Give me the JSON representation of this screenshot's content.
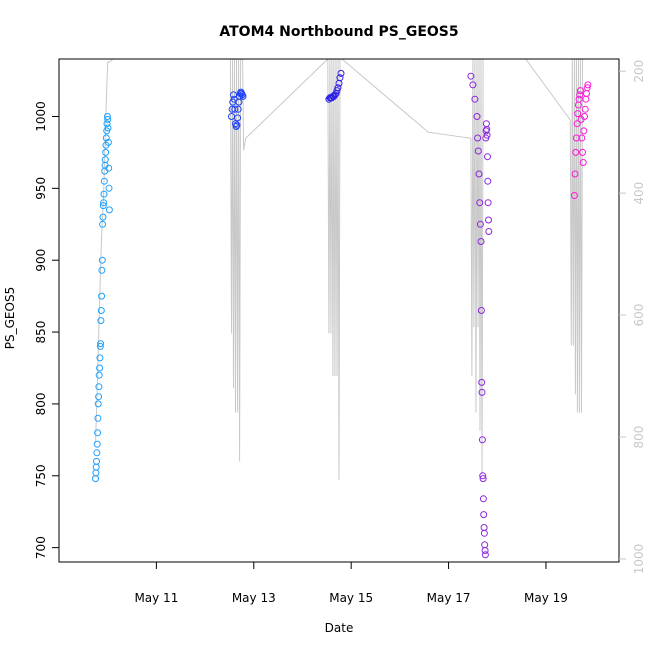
{
  "chart_data": {
    "type": "scatter",
    "title": "ATOM4 Northbound PS_GEOS5",
    "xlabel": "Date",
    "ylabel": "PS_GEOS5",
    "x_axis": {
      "type": "date",
      "range": [
        "2018-05-09T00:00",
        "2018-05-20T12:00"
      ],
      "ticks": [
        {
          "value": "2018-05-11",
          "label": "May 11"
        },
        {
          "value": "2018-05-13",
          "label": "May 13"
        },
        {
          "value": "2018-05-15",
          "label": "May 15"
        },
        {
          "value": "2018-05-17",
          "label": "May 17"
        },
        {
          "value": "2018-05-19",
          "label": "May 19"
        }
      ]
    },
    "y_axis": {
      "range": [
        690,
        1040
      ],
      "ticks": [
        700,
        750,
        800,
        850,
        900,
        950,
        1000
      ]
    },
    "y2_axis": {
      "range": [
        1005,
        180
      ],
      "ticks": [
        200,
        400,
        600,
        800,
        1000
      ],
      "color": "#c8c8c8"
    },
    "grid": false,
    "legend": "none",
    "series": [
      {
        "color": "#1ea0ff",
        "points": [
          [
            "2018-05-09T18:00",
            748
          ],
          [
            "2018-05-09T18:10",
            752
          ],
          [
            "2018-05-09T18:20",
            756
          ],
          [
            "2018-05-09T18:30",
            760
          ],
          [
            "2018-05-09T18:40",
            766
          ],
          [
            "2018-05-09T18:50",
            772
          ],
          [
            "2018-05-09T19:00",
            780
          ],
          [
            "2018-05-09T19:10",
            790
          ],
          [
            "2018-05-09T19:20",
            800
          ],
          [
            "2018-05-09T19:30",
            805
          ],
          [
            "2018-05-09T19:40",
            812
          ],
          [
            "2018-05-09T19:50",
            820
          ],
          [
            "2018-05-09T20:00",
            825
          ],
          [
            "2018-05-09T20:10",
            832
          ],
          [
            "2018-05-09T20:20",
            840
          ],
          [
            "2018-05-09T20:30",
            842
          ],
          [
            "2018-05-09T20:40",
            858
          ],
          [
            "2018-05-09T20:50",
            865
          ],
          [
            "2018-05-09T21:00",
            875
          ],
          [
            "2018-05-09T21:10",
            893
          ],
          [
            "2018-05-09T21:20",
            900
          ],
          [
            "2018-05-09T21:30",
            925
          ],
          [
            "2018-05-09T21:40",
            930
          ],
          [
            "2018-05-09T21:50",
            938
          ],
          [
            "2018-05-09T22:00",
            940
          ],
          [
            "2018-05-09T22:10",
            946
          ],
          [
            "2018-05-09T22:20",
            955
          ],
          [
            "2018-05-09T22:30",
            962
          ],
          [
            "2018-05-09T22:40",
            966
          ],
          [
            "2018-05-09T22:50",
            970
          ],
          [
            "2018-05-09T23:00",
            975
          ],
          [
            "2018-05-09T23:10",
            980
          ],
          [
            "2018-05-09T23:20",
            985
          ],
          [
            "2018-05-09T23:30",
            990
          ],
          [
            "2018-05-09T23:40",
            995
          ],
          [
            "2018-05-09T23:50",
            1000
          ],
          [
            "2018-05-10T00:00",
            998
          ],
          [
            "2018-05-10T00:10",
            992
          ],
          [
            "2018-05-10T00:20",
            982
          ],
          [
            "2018-05-10T00:30",
            964
          ],
          [
            "2018-05-10T00:40",
            950
          ],
          [
            "2018-05-10T00:50",
            935
          ]
        ]
      },
      {
        "color": "#1e40ff",
        "points": [
          [
            "2018-05-12T13:00",
            1000
          ],
          [
            "2018-05-12T13:20",
            1005
          ],
          [
            "2018-05-12T13:40",
            1010
          ],
          [
            "2018-05-12T14:00",
            1015
          ],
          [
            "2018-05-12T14:20",
            1012
          ],
          [
            "2018-05-12T14:40",
            1005
          ],
          [
            "2018-05-12T15:00",
            995
          ],
          [
            "2018-05-12T15:20",
            993
          ],
          [
            "2018-05-12T15:40",
            994
          ],
          [
            "2018-05-12T16:00",
            999
          ],
          [
            "2018-05-12T16:20",
            1005
          ],
          [
            "2018-05-12T16:40",
            1010
          ],
          [
            "2018-05-12T17:00",
            1014
          ],
          [
            "2018-05-12T17:20",
            1016
          ],
          [
            "2018-05-12T17:40",
            1017
          ],
          [
            "2018-05-12T18:00",
            1016
          ],
          [
            "2018-05-12T18:20",
            1015
          ],
          [
            "2018-05-12T18:40",
            1014
          ]
        ]
      },
      {
        "color": "#2d1ee6",
        "points": [
          [
            "2018-05-14T13:00",
            1012
          ],
          [
            "2018-05-14T13:30",
            1013
          ],
          [
            "2018-05-14T14:00",
            1013
          ],
          [
            "2018-05-14T14:30",
            1013
          ],
          [
            "2018-05-14T15:00",
            1014
          ],
          [
            "2018-05-14T15:30",
            1014
          ],
          [
            "2018-05-14T16:00",
            1015
          ],
          [
            "2018-05-14T16:30",
            1016
          ],
          [
            "2018-05-14T17:00",
            1018
          ],
          [
            "2018-05-14T17:30",
            1020
          ],
          [
            "2018-05-14T18:00",
            1023
          ],
          [
            "2018-05-14T18:30",
            1027
          ],
          [
            "2018-05-14T19:00",
            1030
          ]
        ]
      },
      {
        "color": "#8c28dc",
        "points": [
          [
            "2018-05-17T11:00",
            1028
          ],
          [
            "2018-05-17T12:00",
            1022
          ],
          [
            "2018-05-17T13:00",
            1012
          ],
          [
            "2018-05-17T14:00",
            1000
          ],
          [
            "2018-05-17T14:20",
            985
          ],
          [
            "2018-05-17T14:40",
            976
          ],
          [
            "2018-05-17T15:00",
            960
          ],
          [
            "2018-05-17T15:20",
            940
          ],
          [
            "2018-05-17T15:40",
            925
          ],
          [
            "2018-05-17T16:00",
            913
          ],
          [
            "2018-05-17T16:10",
            865
          ],
          [
            "2018-05-17T16:20",
            815
          ],
          [
            "2018-05-17T16:30",
            808
          ],
          [
            "2018-05-17T16:40",
            775
          ],
          [
            "2018-05-17T16:50",
            750
          ],
          [
            "2018-05-17T17:00",
            748
          ],
          [
            "2018-05-17T17:10",
            734
          ],
          [
            "2018-05-17T17:20",
            723
          ],
          [
            "2018-05-17T17:30",
            714
          ],
          [
            "2018-05-17T17:40",
            710
          ],
          [
            "2018-05-17T17:50",
            702
          ],
          [
            "2018-05-17T18:00",
            698
          ],
          [
            "2018-05-17T18:10",
            695
          ],
          [
            "2018-05-17T18:20",
            985
          ],
          [
            "2018-05-17T18:30",
            990
          ],
          [
            "2018-05-17T18:40",
            995
          ],
          [
            "2018-05-17T18:50",
            991
          ],
          [
            "2018-05-17T19:00",
            987
          ],
          [
            "2018-05-17T19:10",
            972
          ],
          [
            "2018-05-17T19:20",
            955
          ],
          [
            "2018-05-17T19:30",
            940
          ],
          [
            "2018-05-17T19:40",
            928
          ],
          [
            "2018-05-17T19:50",
            920
          ]
        ]
      },
      {
        "color": "#ff19dc",
        "points": [
          [
            "2018-05-19T14:00",
            945
          ],
          [
            "2018-05-19T14:20",
            960
          ],
          [
            "2018-05-19T14:40",
            975
          ],
          [
            "2018-05-19T15:00",
            985
          ],
          [
            "2018-05-19T15:20",
            995
          ],
          [
            "2018-05-19T15:40",
            1002
          ],
          [
            "2018-05-19T16:00",
            1008
          ],
          [
            "2018-05-19T16:20",
            1012
          ],
          [
            "2018-05-19T16:40",
            1015
          ],
          [
            "2018-05-19T17:00",
            1018
          ],
          [
            "2018-05-19T17:20",
            998
          ],
          [
            "2018-05-19T17:40",
            985
          ],
          [
            "2018-05-19T18:00",
            975
          ],
          [
            "2018-05-19T18:20",
            968
          ],
          [
            "2018-05-19T18:40",
            990
          ],
          [
            "2018-05-19T19:00",
            1000
          ],
          [
            "2018-05-19T19:20",
            1005
          ],
          [
            "2018-05-19T19:40",
            1012
          ],
          [
            "2018-05-19T20:00",
            1016
          ],
          [
            "2018-05-19T20:20",
            1020
          ],
          [
            "2018-05-19T20:40",
            1022
          ]
        ]
      }
    ],
    "vertical_profile_line": {
      "color": "#c8c8c8",
      "axis": "y2",
      "points": [
        [
          "2018-05-09T18:00",
          810
        ],
        [
          "2018-05-09T18:30",
          760
        ],
        [
          "2018-05-09T19:00",
          700
        ],
        [
          "2018-05-09T19:30",
          640
        ],
        [
          "2018-05-09T20:00",
          580
        ],
        [
          "2018-05-09T20:30",
          520
        ],
        [
          "2018-05-09T21:00",
          470
        ],
        [
          "2018-05-09T21:30",
          440
        ],
        [
          "2018-05-09T22:00",
          400
        ],
        [
          "2018-05-09T22:30",
          340
        ],
        [
          "2018-05-09T23:00",
          280
        ],
        [
          "2018-05-09T23:30",
          230
        ],
        [
          "2018-05-10T00:00",
          185
        ],
        [
          "2018-05-10T00:30",
          185
        ],
        [
          "2018-05-10T01:00",
          185
        ],
        [
          "2018-05-10T04:00",
          175
        ],
        [
          "2018-05-12T12:30",
          180
        ],
        [
          "2018-05-12T13:00",
          630
        ],
        [
          "2018-05-12T13:30",
          180
        ],
        [
          "2018-05-12T14:00",
          720
        ],
        [
          "2018-05-12T14:30",
          180
        ],
        [
          "2018-05-12T15:00",
          760
        ],
        [
          "2018-05-12T15:30",
          180
        ],
        [
          "2018-05-12T16:00",
          760
        ],
        [
          "2018-05-12T16:30",
          180
        ],
        [
          "2018-05-12T17:00",
          840
        ],
        [
          "2018-05-12T17:30",
          180
        ],
        [
          "2018-05-12T18:30",
          180
        ],
        [
          "2018-05-12T19:00",
          330
        ],
        [
          "2018-05-12T20:00",
          310
        ],
        [
          "2018-05-14T12:30",
          180
        ],
        [
          "2018-05-14T13:00",
          630
        ],
        [
          "2018-05-14T13:30",
          180
        ],
        [
          "2018-05-14T14:00",
          630
        ],
        [
          "2018-05-14T14:30",
          180
        ],
        [
          "2018-05-14T15:00",
          700
        ],
        [
          "2018-05-14T15:30",
          180
        ],
        [
          "2018-05-14T16:00",
          700
        ],
        [
          "2018-05-14T16:30",
          180
        ],
        [
          "2018-05-14T17:00",
          700
        ],
        [
          "2018-05-14T17:30",
          180
        ],
        [
          "2018-05-14T18:00",
          870
        ],
        [
          "2018-05-14T18:30",
          180
        ],
        [
          "2018-05-14T19:30",
          180
        ],
        [
          "2018-05-16T14:00",
          300
        ],
        [
          "2018-05-17T11:00",
          310
        ],
        [
          "2018-05-17T11:30",
          700
        ],
        [
          "2018-05-17T12:00",
          180
        ],
        [
          "2018-05-17T12:30",
          620
        ],
        [
          "2018-05-17T13:00",
          180
        ],
        [
          "2018-05-17T13:30",
          760
        ],
        [
          "2018-05-17T14:00",
          180
        ],
        [
          "2018-05-17T14:30",
          620
        ],
        [
          "2018-05-17T15:00",
          180
        ],
        [
          "2018-05-17T15:30",
          790
        ],
        [
          "2018-05-17T16:00",
          180
        ],
        [
          "2018-05-17T16:30",
          860
        ],
        [
          "2018-05-17T17:00",
          180
        ],
        [
          "2018-05-17T18:00",
          180
        ],
        [
          "2018-05-18T14:00",
          180
        ],
        [
          "2018-05-19T12:00",
          280
        ],
        [
          "2018-05-19T12:30",
          650
        ],
        [
          "2018-05-19T13:00",
          180
        ],
        [
          "2018-05-19T13:30",
          650
        ],
        [
          "2018-05-19T14:00",
          180
        ],
        [
          "2018-05-19T14:30",
          730
        ],
        [
          "2018-05-19T15:00",
          180
        ],
        [
          "2018-05-19T15:30",
          760
        ],
        [
          "2018-05-19T16:00",
          180
        ],
        [
          "2018-05-19T16:30",
          760
        ],
        [
          "2018-05-19T17:00",
          180
        ],
        [
          "2018-05-19T17:30",
          760
        ],
        [
          "2018-05-19T18:00",
          180
        ]
      ]
    }
  }
}
